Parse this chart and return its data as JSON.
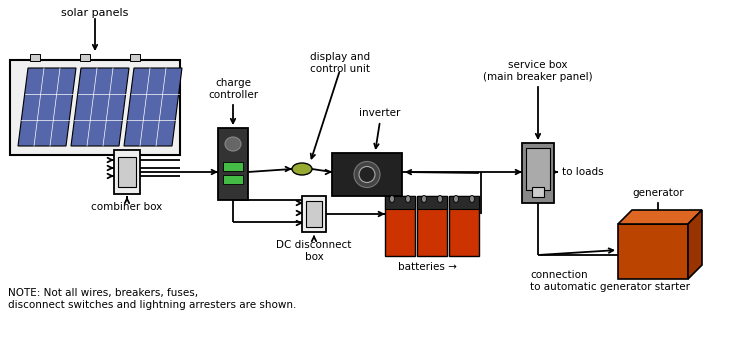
{
  "bg_color": "#ffffff",
  "note_text": "NOTE: Not all wires, breakers, fuses,\ndisconnect switches and lightning arresters are shown.",
  "labels": {
    "solar_panels": "solar panels",
    "charge_controller": "charge\ncontroller",
    "display_control": "display and\ncontrol unit",
    "inverter": "inverter",
    "service_box": "service box\n(main breaker panel)",
    "to_loads": "to loads",
    "combiner_box": "combiner box",
    "dc_disconnect": "DC disconnect\nbox",
    "batteries": "batteries",
    "generator": "generator",
    "connection": "connection\nto automatic generator starter"
  },
  "colors": {
    "panel_blue": "#5566aa",
    "wire": "#000000",
    "charge_ctrl_body": "#333333",
    "charge_ctrl_green": "#44bb44",
    "inverter_body": "#222222",
    "service_box_body": "#888888",
    "service_box_inner": "#aaaaaa",
    "combiner_box": "#e8e8e8",
    "battery_red": "#cc3300",
    "battery_dark": "#2a2a2a",
    "generator_front": "#bb4400",
    "generator_top": "#dd6622",
    "generator_right": "#993300",
    "dc_disconnect": "#e8e8e8",
    "coupler": "#99aa33",
    "text_color": "#000000"
  }
}
